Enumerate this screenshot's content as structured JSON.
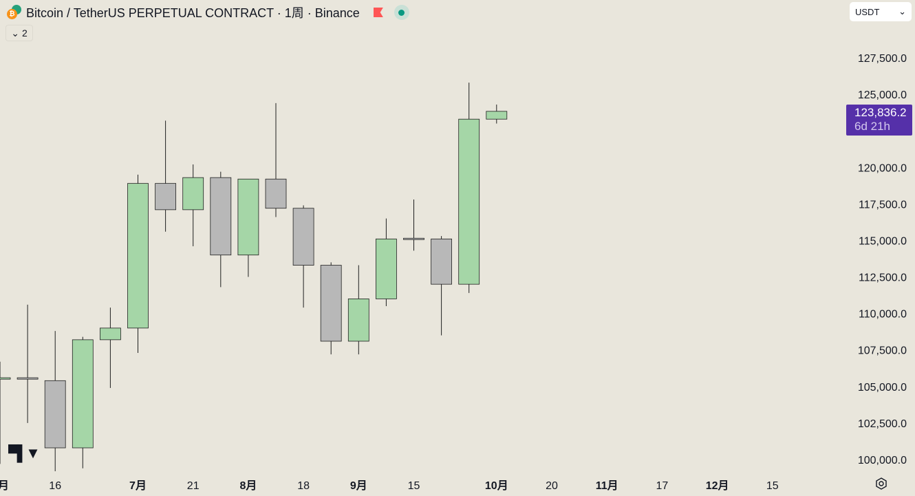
{
  "header": {
    "symbol": "Bitcoin / TetherUS PERPETUAL CONTRACT · 1周 · Binance",
    "coin_letter": "₿",
    "collapse_count": "2",
    "collapse_icon": "⌄"
  },
  "currency_select": {
    "value": "USDT",
    "icon": "⌄"
  },
  "price_label": {
    "price": "123,836.2",
    "countdown": "6d 21h"
  },
  "logo": "TV",
  "colors": {
    "background": "#e9e6dc",
    "up": "#a5d6a7",
    "down": "#b8b8b8",
    "wick": "#1e1e1e",
    "label": "#5530a9"
  },
  "chart_data": {
    "type": "candlestick",
    "title": "Bitcoin / TetherUS PERPETUAL CONTRACT · 1周 · Binance",
    "ylim": [
      99000,
      131000
    ],
    "yticks": [
      "100,000.0",
      "102,500.0",
      "105,000.0",
      "107,500.0",
      "110,000.0",
      "112,500.0",
      "115,000.0",
      "117,500.0",
      "120,000.0",
      "125,000.0",
      "127,500.0"
    ],
    "ytick_values": [
      100000,
      102500,
      105000,
      107500,
      110000,
      112500,
      115000,
      117500,
      120000,
      125000,
      127500
    ],
    "xticks": [
      {
        "label": "月",
        "index": 0,
        "bold": true
      },
      {
        "label": "16",
        "index": 2,
        "bold": false
      },
      {
        "label": "7月",
        "index": 5,
        "bold": true
      },
      {
        "label": "21",
        "index": 7,
        "bold": false
      },
      {
        "label": "8月",
        "index": 9,
        "bold": true
      },
      {
        "label": "18",
        "index": 11,
        "bold": false
      },
      {
        "label": "9月",
        "index": 13,
        "bold": true
      },
      {
        "label": "15",
        "index": 15,
        "bold": false
      },
      {
        "label": "10月",
        "index": 18,
        "bold": true
      },
      {
        "label": "20",
        "index": 20,
        "bold": false
      },
      {
        "label": "11月",
        "index": 22,
        "bold": true
      },
      {
        "label": "17",
        "index": 24,
        "bold": false
      },
      {
        "label": "12月",
        "index": 26,
        "bold": true
      },
      {
        "label": "15",
        "index": 28,
        "bold": false
      }
    ],
    "candles": [
      {
        "o": 105500,
        "h": 106700,
        "l": 99700,
        "c": 105600
      },
      {
        "o": 105600,
        "h": 110600,
        "l": 102500,
        "c": 105500
      },
      {
        "o": 105400,
        "h": 108800,
        "l": 99200,
        "c": 100800
      },
      {
        "o": 100800,
        "h": 108400,
        "l": 99400,
        "c": 108200
      },
      {
        "o": 108200,
        "h": 110400,
        "l": 104900,
        "c": 109000
      },
      {
        "o": 109000,
        "h": 119500,
        "l": 107300,
        "c": 118900
      },
      {
        "o": 118900,
        "h": 123200,
        "l": 115600,
        "c": 117100
      },
      {
        "o": 117100,
        "h": 120200,
        "l": 114600,
        "c": 119300
      },
      {
        "o": 119300,
        "h": 119700,
        "l": 111800,
        "c": 114000
      },
      {
        "o": 114000,
        "h": 119200,
        "l": 112500,
        "c": 119200
      },
      {
        "o": 119200,
        "h": 124400,
        "l": 116600,
        "c": 117200
      },
      {
        "o": 117200,
        "h": 117400,
        "l": 110400,
        "c": 113300
      },
      {
        "o": 113300,
        "h": 113500,
        "l": 107200,
        "c": 108100
      },
      {
        "o": 108100,
        "h": 113300,
        "l": 107200,
        "c": 111000
      },
      {
        "o": 111000,
        "h": 116500,
        "l": 110500,
        "c": 115100
      },
      {
        "o": 115150,
        "h": 117800,
        "l": 114300,
        "c": 115100
      },
      {
        "o": 115100,
        "h": 115300,
        "l": 108500,
        "c": 112000
      },
      {
        "o": 112000,
        "h": 125800,
        "l": 111400,
        "c": 123300
      },
      {
        "o": 123300,
        "h": 124300,
        "l": 123000,
        "c": 123836.2
      }
    ]
  }
}
